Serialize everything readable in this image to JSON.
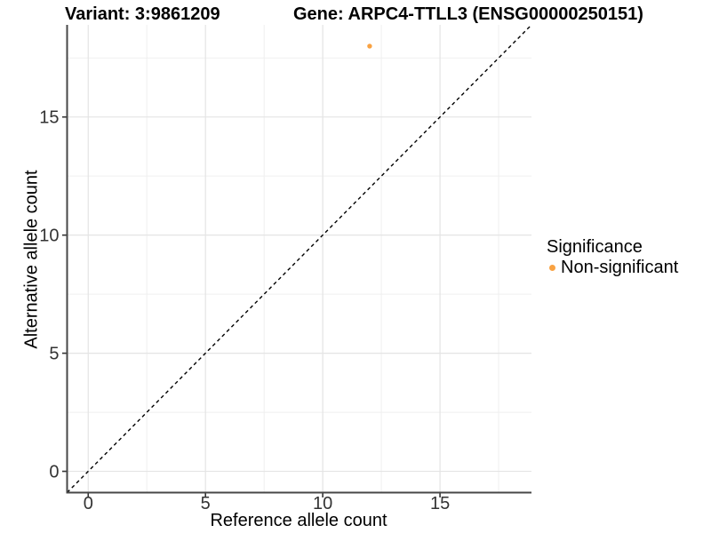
{
  "titles": {
    "variant": "Variant: 3:9861209",
    "gene": "Gene: ARPC4-TTLL3 (ENSG00000250151)"
  },
  "axes": {
    "x_label": "Reference allele count",
    "y_label": "Alternative allele count"
  },
  "legend": {
    "title": "Significance",
    "items": [
      {
        "label": "Non-significant",
        "color": "#F9A242"
      }
    ]
  },
  "colors": {
    "point": "#F9A242",
    "grid_major": "#e4e4e4",
    "grid_minor": "#efefef",
    "axis_line": "#474747",
    "tick_mark": "#333333",
    "tick_text": "#333333",
    "reference_line": "#000000"
  },
  "chart_data": {
    "type": "scatter",
    "title": "Variant: 3:9861209 — Gene: ARPC4-TTLL3 (ENSG00000250151)",
    "xlabel": "Reference allele count",
    "ylabel": "Alternative allele count",
    "xlim": [
      -0.9,
      18.9
    ],
    "ylim": [
      -0.9,
      18.9
    ],
    "x_major_ticks": [
      0,
      5,
      10,
      15
    ],
    "y_major_ticks": [
      0,
      5,
      10,
      15
    ],
    "x_minor_ticks": [
      2.5,
      7.5,
      12.5,
      17.5
    ],
    "y_minor_ticks": [
      2.5,
      7.5,
      12.5,
      17.5
    ],
    "grid": true,
    "legend_position": "right",
    "series": [
      {
        "name": "Non-significant",
        "color": "#F9A242",
        "points": [
          {
            "x": 12,
            "y": 18
          }
        ]
      }
    ],
    "reference_line": {
      "kind": "identity",
      "slope": 1,
      "intercept": 0,
      "style": "dashed",
      "from": -0.9,
      "to": 18.9
    }
  }
}
